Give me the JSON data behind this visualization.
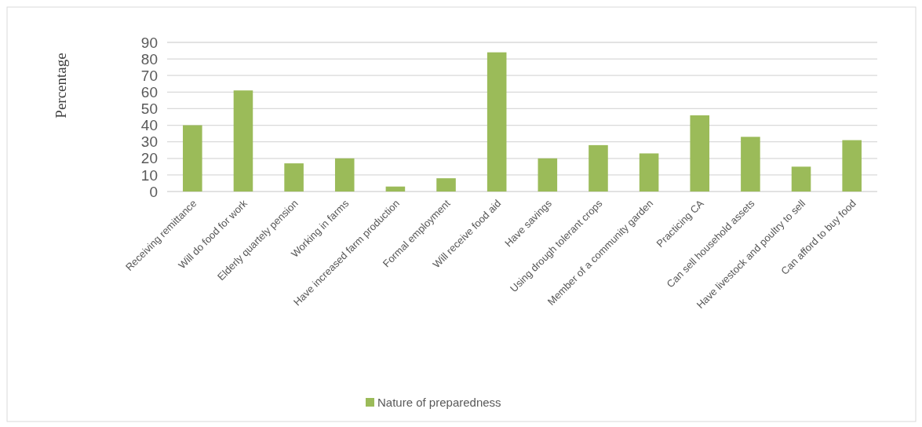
{
  "chart_data": {
    "type": "bar",
    "ylabel": "Percentage",
    "categories": [
      "Receiving remittance",
      "Will do food for work",
      "Elderly quartely pension",
      "Working in farms",
      "Have increased farm production",
      "Formal employment",
      "Will receive food aid",
      "Have savings",
      "Using drough tolerant crops",
      "Member of a community garden",
      "Practicing CA",
      "Can sell household assets",
      "Have livestock and poultry to sell",
      "Can afford to buy food"
    ],
    "series": [
      {
        "name": "Nature of preparedness",
        "color": "#9bbb59",
        "values": [
          40,
          61,
          17,
          20,
          3,
          8,
          84,
          20,
          28,
          23,
          46,
          33,
          15,
          31
        ]
      }
    ],
    "ylim": [
      0,
      90
    ],
    "yticks": [
      0,
      10,
      20,
      30,
      40,
      50,
      60,
      70,
      80,
      90
    ],
    "grid": "y",
    "legend": "bottom"
  }
}
